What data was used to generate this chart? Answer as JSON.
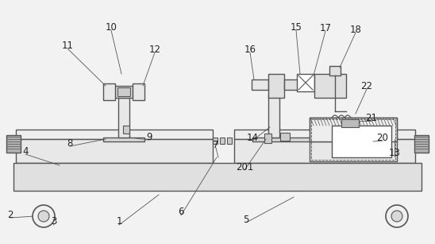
{
  "bg_color": "#f2f2f2",
  "lc": "#555555",
  "figsize": [
    5.48,
    3.07
  ],
  "dpi": 100,
  "labels": [
    [
      "1",
      148,
      278
    ],
    [
      "2",
      13,
      268
    ],
    [
      "3",
      68,
      278
    ],
    [
      "4",
      32,
      188
    ],
    [
      "5",
      310,
      275
    ],
    [
      "6",
      228,
      265
    ],
    [
      "7",
      272,
      180
    ],
    [
      "8",
      88,
      178
    ],
    [
      "9",
      188,
      170
    ],
    [
      "10",
      140,
      35
    ],
    [
      "11",
      85,
      58
    ],
    [
      "12",
      195,
      62
    ],
    [
      "13",
      497,
      192
    ],
    [
      "14",
      318,
      172
    ],
    [
      "15",
      373,
      35
    ],
    [
      "16",
      315,
      62
    ],
    [
      "17",
      410,
      35
    ],
    [
      "18",
      448,
      38
    ],
    [
      "20",
      482,
      172
    ],
    [
      "21",
      468,
      148
    ],
    [
      "22",
      462,
      108
    ],
    [
      "201",
      308,
      208
    ]
  ]
}
